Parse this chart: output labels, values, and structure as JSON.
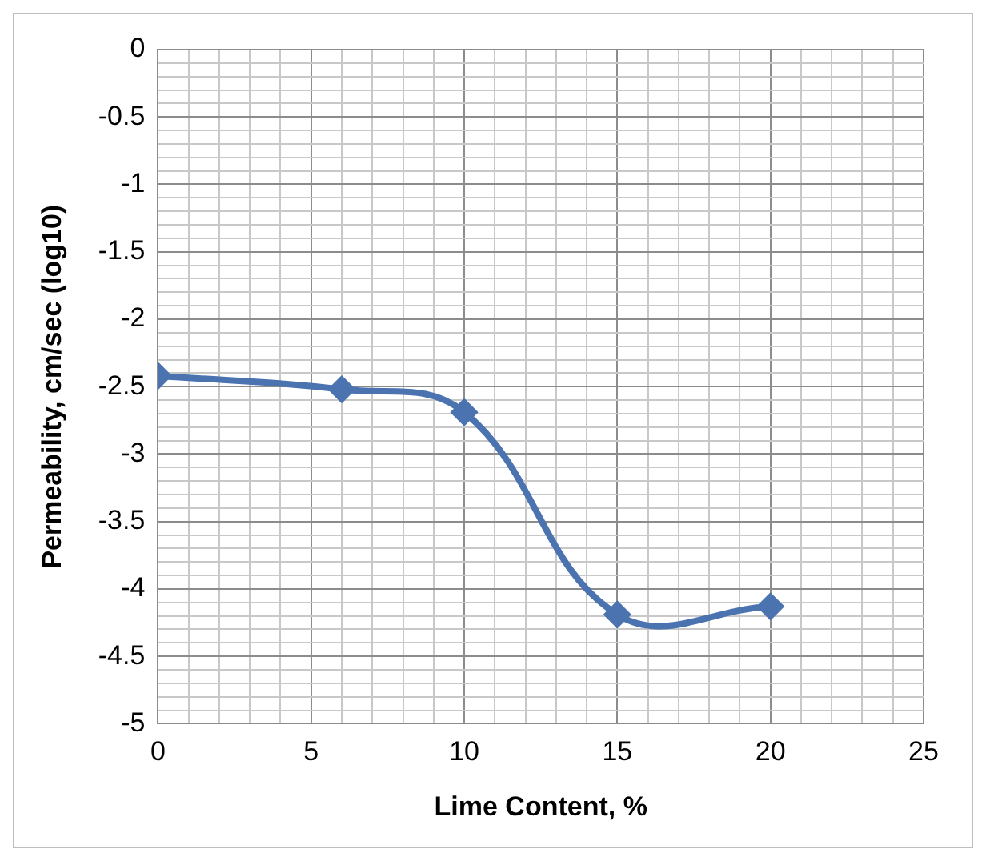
{
  "chart_data": {
    "type": "line",
    "xlabel": "Lime Content, %",
    "ylabel": "Permeability, cm/sec (log10)",
    "x": [
      0,
      6,
      10,
      15,
      20
    ],
    "series": [
      {
        "color": "#4a73b0",
        "values": [
          -2.42,
          -2.52,
          -2.69,
          -4.19,
          -4.13
        ]
      }
    ],
    "xlim": [
      0,
      25
    ],
    "xticks": [
      0,
      {
        "value": 1,
        "label": null
      },
      {
        "value": 2,
        "label": null
      },
      {
        "value": 3,
        "label": null
      },
      {
        "value": 4,
        "label": null
      },
      5,
      {
        "value": 6,
        "label": null
      },
      {
        "value": 7,
        "label": null
      },
      {
        "value": 8,
        "label": null
      },
      {
        "value": 9,
        "label": null
      },
      10,
      {
        "value": 11,
        "label": null
      },
      {
        "value": 12,
        "label": null
      },
      {
        "value": 13,
        "label": null
      },
      {
        "value": 14,
        "label": null
      },
      15,
      {
        "value": 16,
        "label": null
      },
      {
        "value": 17,
        "label": null
      },
      {
        "value": 18,
        "label": null
      },
      {
        "value": 19,
        "label": null
      },
      20,
      {
        "value": 21,
        "label": null
      },
      {
        "value": 22,
        "label": null
      },
      {
        "value": 23,
        "label": null
      },
      {
        "value": 24,
        "label": null
      },
      25
    ],
    "ylim": [
      -5,
      0
    ],
    "yticks": [
      0,
      {
        "value": -0.1,
        "label": null
      },
      {
        "value": -0.2,
        "label": null
      },
      {
        "value": -0.3,
        "label": null
      },
      {
        "value": -0.4,
        "label": null
      },
      -0.5,
      {
        "value": -0.6,
        "label": null
      },
      {
        "value": -0.7,
        "label": null
      },
      {
        "value": -0.8,
        "label": null
      },
      {
        "value": -0.9,
        "label": null
      },
      -1,
      {
        "value": -1.1,
        "label": null
      },
      {
        "value": -1.2,
        "label": null
      },
      {
        "value": -1.3,
        "label": null
      },
      {
        "value": -1.4,
        "label": null
      },
      -1.5,
      {
        "value": -1.6,
        "label": null
      },
      {
        "value": -1.7,
        "label": null
      },
      {
        "value": -1.8,
        "label": null
      },
      {
        "value": -1.9,
        "label": null
      },
      -2,
      {
        "value": -2.1,
        "label": null
      },
      {
        "value": -2.2,
        "label": null
      },
      {
        "value": -2.3,
        "label": null
      },
      {
        "value": -2.4,
        "label": null
      },
      -2.5,
      {
        "value": -2.6,
        "label": null
      },
      {
        "value": -2.7,
        "label": null
      },
      {
        "value": -2.8,
        "label": null
      },
      {
        "value": -2.9,
        "label": null
      },
      -3,
      {
        "value": -3.1,
        "label": null
      },
      {
        "value": -3.2,
        "label": null
      },
      {
        "value": -3.3,
        "label": null
      },
      {
        "value": -3.4,
        "label": null
      },
      -3.5,
      {
        "value": -3.6,
        "label": null
      },
      {
        "value": -3.7,
        "label": null
      },
      {
        "value": -3.8,
        "label": null
      },
      {
        "value": -3.9,
        "label": null
      },
      -4,
      {
        "value": -4.1,
        "label": null
      },
      {
        "value": -4.2,
        "label": null
      },
      {
        "value": -4.3,
        "label": null
      },
      {
        "value": -4.4,
        "label": null
      },
      -4.5,
      {
        "value": -4.6,
        "label": null
      },
      {
        "value": -4.7,
        "label": null
      },
      {
        "value": -4.8,
        "label": null
      },
      {
        "value": -4.9,
        "label": null
      },
      -5
    ],
    "grid": true,
    "marker": "diamond",
    "line_style": "solid",
    "legend": false
  }
}
